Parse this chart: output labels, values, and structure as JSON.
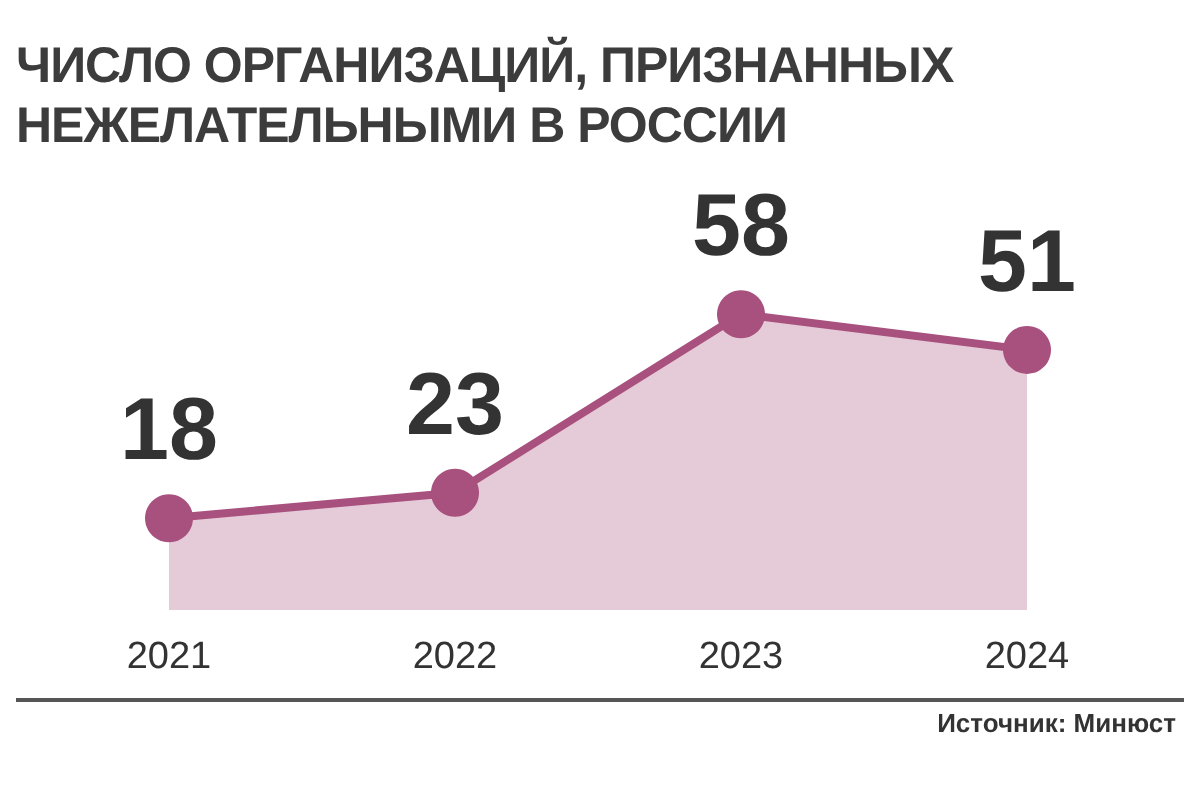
{
  "chart_data": {
    "type": "area",
    "title": "ЧИСЛО ОРГАНИЗАЦИЙ, ПРИЗНАННЫХ НЕЖЕЛАТЕЛЬНЫМИ В РОССИИ",
    "categories": [
      "2021",
      "2022",
      "2023",
      "2024"
    ],
    "series": [
      {
        "color": "#a8507e",
        "values": [
          18,
          23,
          58,
          51
        ]
      }
    ],
    "data_labels": true,
    "marker": "circle",
    "grid": false,
    "annotations": [
      "Источник: Минюст"
    ]
  }
}
